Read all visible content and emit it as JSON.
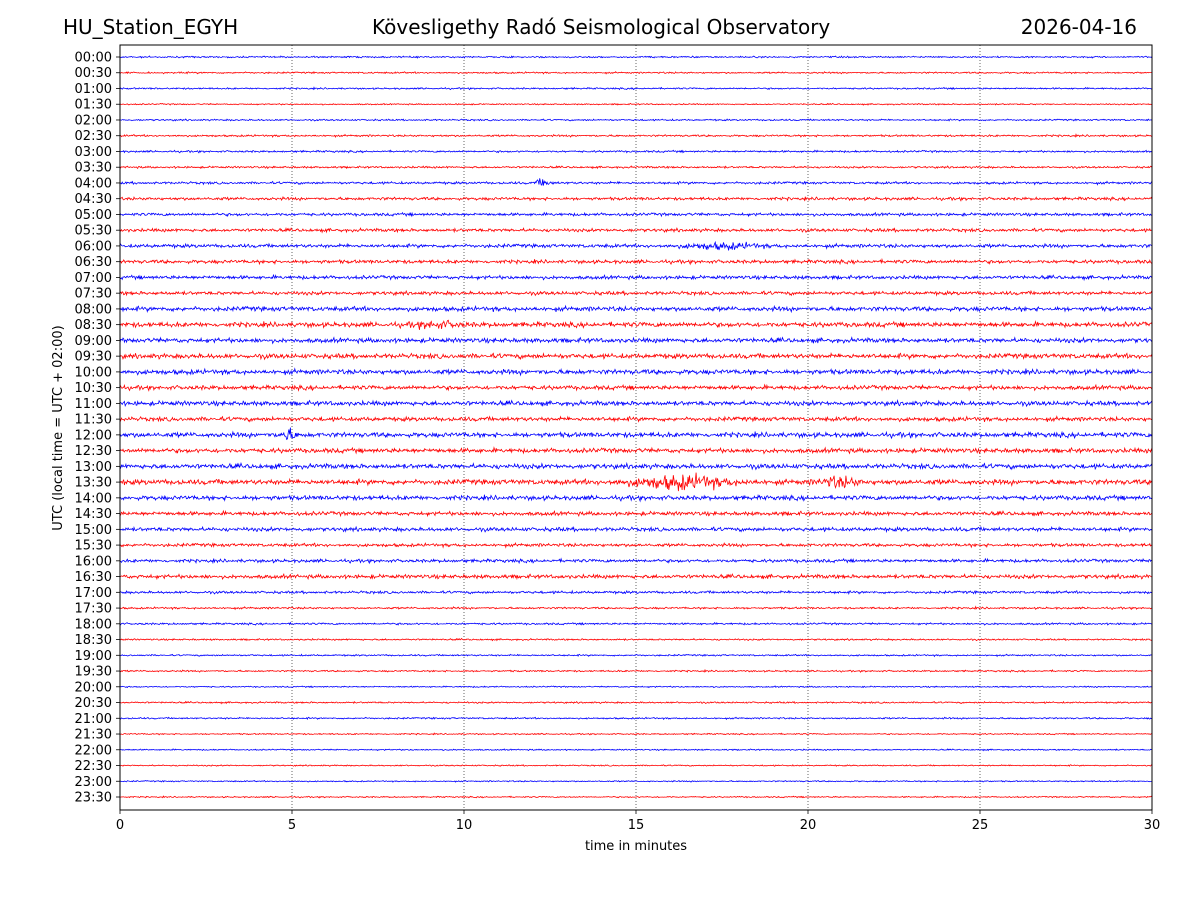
{
  "header": {
    "station": "HU_Station_EGYH",
    "observatory": "Kövesligethy Radó Seismological Observatory",
    "date": "2026-04-16"
  },
  "chart_data": {
    "type": "line",
    "title": "Kövesligethy Radó Seismological Observatory",
    "xlabel": "time in minutes",
    "ylabel": "UTC (local time = UTC + 02:00)",
    "xlim": [
      0,
      30
    ],
    "xticks": [
      "0",
      "5",
      "10",
      "15",
      "20",
      "25",
      "30"
    ],
    "grid": "vertical dotted at x ticks",
    "colors": [
      "#0000ff",
      "#ff0000"
    ],
    "rows": [
      "00:00",
      "00:30",
      "01:00",
      "01:30",
      "02:00",
      "02:30",
      "03:00",
      "03:30",
      "04:00",
      "04:30",
      "05:00",
      "05:30",
      "06:00",
      "06:30",
      "07:00",
      "07:30",
      "08:00",
      "08:30",
      "09:00",
      "09:30",
      "10:00",
      "10:30",
      "11:00",
      "11:30",
      "12:00",
      "12:30",
      "13:00",
      "13:30",
      "14:00",
      "14:30",
      "15:00",
      "15:30",
      "16:00",
      "16:30",
      "17:00",
      "17:30",
      "18:00",
      "18:30",
      "19:00",
      "19:30",
      "20:00",
      "20:30",
      "21:00",
      "21:30",
      "22:00",
      "22:30",
      "23:00",
      "23:30"
    ],
    "noise_level": [
      1,
      1,
      1,
      0.8,
      1,
      1.2,
      1.2,
      1.2,
      1.5,
      1.8,
      1.8,
      2,
      2.2,
      2.2,
      2.2,
      2.2,
      2.8,
      3,
      2.8,
      3,
      3,
      2.6,
      2.8,
      2.6,
      3,
      2.8,
      3,
      3.2,
      2.8,
      2.4,
      2.4,
      2,
      2,
      2.4,
      1.6,
      1.2,
      1.2,
      1,
      1,
      1,
      0.8,
      1,
      1,
      0.8,
      0.8,
      0.8,
      0.8,
      0.8
    ],
    "events": [
      {
        "row": "04:00",
        "minute": 12.3,
        "amplitude": 4,
        "duration": 0.2
      },
      {
        "row": "06:00",
        "minute": 17.5,
        "amplitude": 3,
        "duration": 1.0
      },
      {
        "row": "08:30",
        "minute": 9.2,
        "amplitude": 3,
        "duration": 0.6
      },
      {
        "row": "12:00",
        "minute": 4.9,
        "amplitude": 6,
        "duration": 0.2
      },
      {
        "row": "13:30",
        "minute": 16.3,
        "amplitude": 7,
        "duration": 1.3
      },
      {
        "row": "13:30",
        "minute": 20.9,
        "amplitude": 5,
        "duration": 0.5
      }
    ]
  }
}
